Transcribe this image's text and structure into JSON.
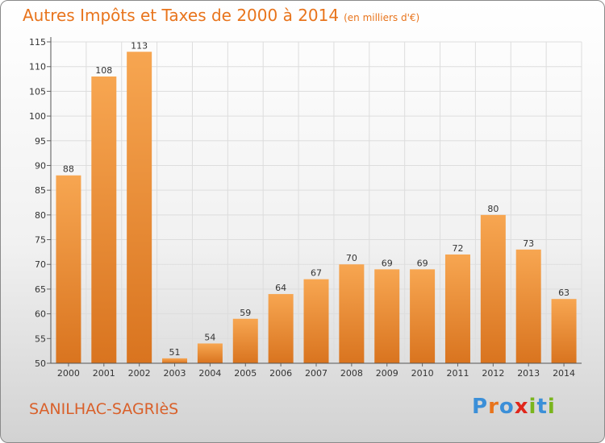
{
  "title": "Autres Impôts et Taxes de 2000 à 2014",
  "unit_label": "(en milliers d'€)",
  "commune": "SANILHAC-SAGRIèS",
  "brand": {
    "letters": [
      "P",
      "r",
      "o",
      "x",
      "i",
      "t",
      "i"
    ],
    "colors": [
      "#3b8fd8",
      "#e8741c",
      "#3b8fd8",
      "#e0261b",
      "#7ab51d",
      "#3b8fd8",
      "#7ab51d"
    ]
  },
  "colors": {
    "bar_light": "#f7a651",
    "bar_dark": "#d9741f",
    "title": "#e8741c",
    "commune": "#d9602a"
  },
  "chart_data": {
    "type": "bar",
    "categories": [
      "2000",
      "2001",
      "2002",
      "2003",
      "2004",
      "2005",
      "2006",
      "2007",
      "2008",
      "2009",
      "2010",
      "2011",
      "2012",
      "2013",
      "2014"
    ],
    "values": [
      88,
      108,
      113,
      51,
      54,
      59,
      64,
      67,
      70,
      69,
      69,
      72,
      80,
      73,
      63
    ],
    "data_labels": [
      "88",
      "108",
      "113",
      "51",
      "54",
      "59",
      "64",
      "67",
      "70",
      "69",
      "69",
      "72",
      "80",
      "73",
      "63"
    ],
    "yticks": [
      "50",
      "55",
      "60",
      "65",
      "70",
      "75",
      "80",
      "85",
      "90",
      "95",
      "100",
      "105",
      "110",
      "115"
    ],
    "ylim": [
      50,
      115
    ],
    "grid": true,
    "legend": "none"
  }
}
